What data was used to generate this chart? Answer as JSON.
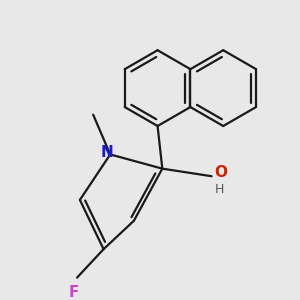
{
  "background_color": "#e8e8e8",
  "line_color": "#1a1a1a",
  "bond_lw": 1.6,
  "figsize": [
    3.0,
    3.0
  ],
  "dpi": 100,
  "xlim": [
    0,
    300
  ],
  "ylim": [
    0,
    300
  ],
  "N_color": "#1a1acc",
  "F_color": "#cc44cc",
  "O_color": "#cc2200",
  "H_color": "#555555"
}
